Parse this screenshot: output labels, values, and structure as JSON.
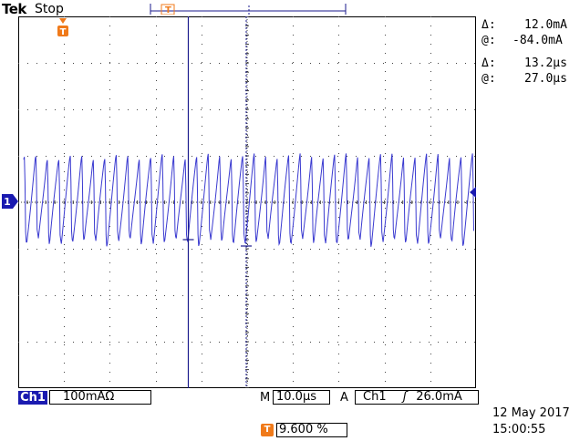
{
  "header": {
    "brand": "Tek",
    "state": "Stop"
  },
  "cursors": {
    "amplitude_delta_label": "Δ:",
    "amplitude_delta": "12.0mA",
    "amplitude_at_label": "@:",
    "amplitude_at": "-84.0mA",
    "time_delta_label": "Δ:",
    "time_delta": "13.2μs",
    "time_at_label": "@:",
    "time_at": "27.0μs"
  },
  "channel": {
    "marker": "1",
    "label": "Ch1",
    "scale": "100mAΩ"
  },
  "horizontal": {
    "prefix": "M",
    "scale": "10.0μs"
  },
  "trigger": {
    "mode": "A",
    "source": "Ch1",
    "slope_icon": "rising-edge-icon",
    "slope_glyph": "ʃ",
    "level": "26.0mA",
    "marker": "T",
    "position": "9.600 %"
  },
  "datetime": {
    "date": "12 May 2017",
    "time": "15:00:55"
  },
  "colors": {
    "trace": "#3a3ad0",
    "cursor": "#1a1a8c",
    "grid": "#444444",
    "trigger_marker": "#f07a1a",
    "channel_tag": "#1a1ab0"
  },
  "waveform": {
    "units": "mA",
    "baseline_level": 0,
    "peak_high": 100,
    "peak_low": -90
  }
}
